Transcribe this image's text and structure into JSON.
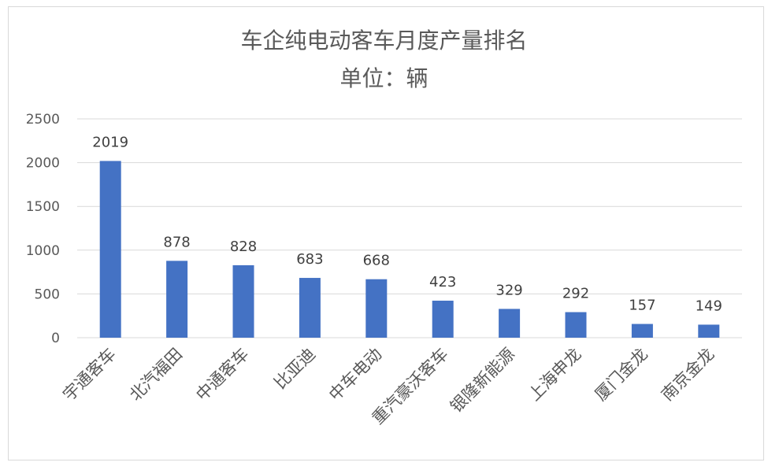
{
  "chart_data": {
    "type": "bar",
    "title": "车企纯电动客车月度产量排名",
    "subtitle": "单位：辆",
    "categories": [
      "宇通客车",
      "北汽福田",
      "中通客车",
      "比亚迪",
      "中车电动",
      "重汽豪沃客车",
      "银隆新能源",
      "上海申龙",
      "厦门金龙",
      "南京金龙"
    ],
    "values": [
      2019,
      878,
      828,
      683,
      668,
      423,
      329,
      292,
      157,
      149
    ],
    "yticks": [
      0,
      500,
      1000,
      1500,
      2000,
      2500
    ],
    "ylim": [
      0,
      2500
    ],
    "grid": true,
    "bar_color": "#4472c4",
    "gridline_color": "#d9d9d9"
  }
}
